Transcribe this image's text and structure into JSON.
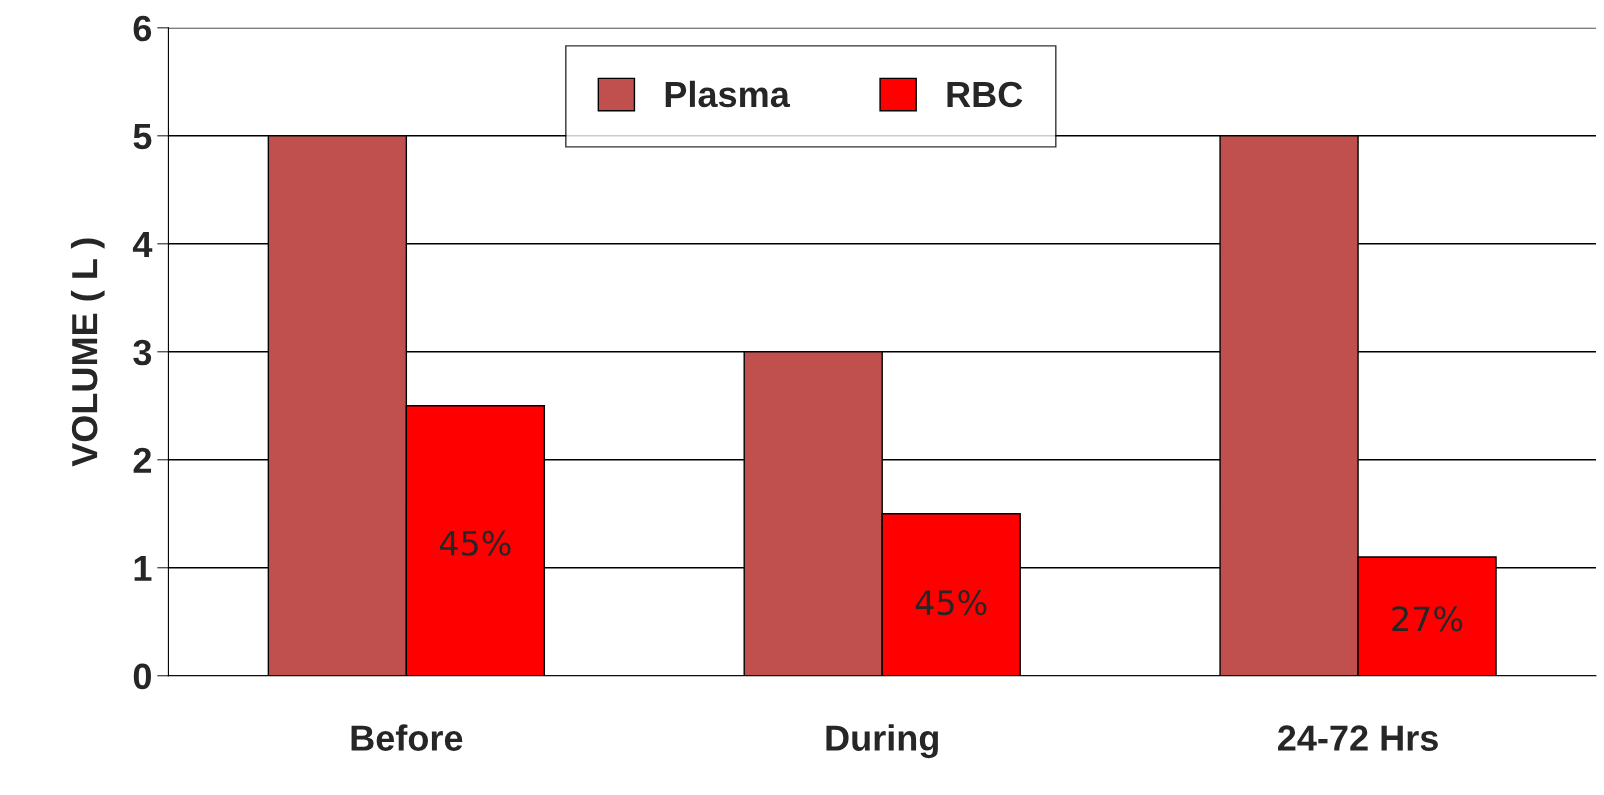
{
  "chart_data": {
    "type": "bar",
    "ylabel": "VOLUME ( L )",
    "categories": [
      "Before",
      "During",
      "24-72 Hrs"
    ],
    "series": [
      {
        "name": "Plasma",
        "color": "#c0504d",
        "values": [
          5,
          3,
          5
        ]
      },
      {
        "name": "RBC",
        "color": "#ff0000",
        "values": [
          2.5,
          1.5,
          1.1
        ]
      }
    ],
    "annotations": [
      {
        "text": "45%",
        "x": "Before",
        "y": 1.2
      },
      {
        "text": "45%",
        "x": "During",
        "y": 0.65
      },
      {
        "text": "27%",
        "x": "24-72 Hrs",
        "y": 0.5
      }
    ],
    "ylim": [
      0,
      6
    ],
    "yticks": [
      0,
      1,
      2,
      3,
      4,
      5,
      6
    ],
    "grid": "y",
    "legend": "top"
  }
}
